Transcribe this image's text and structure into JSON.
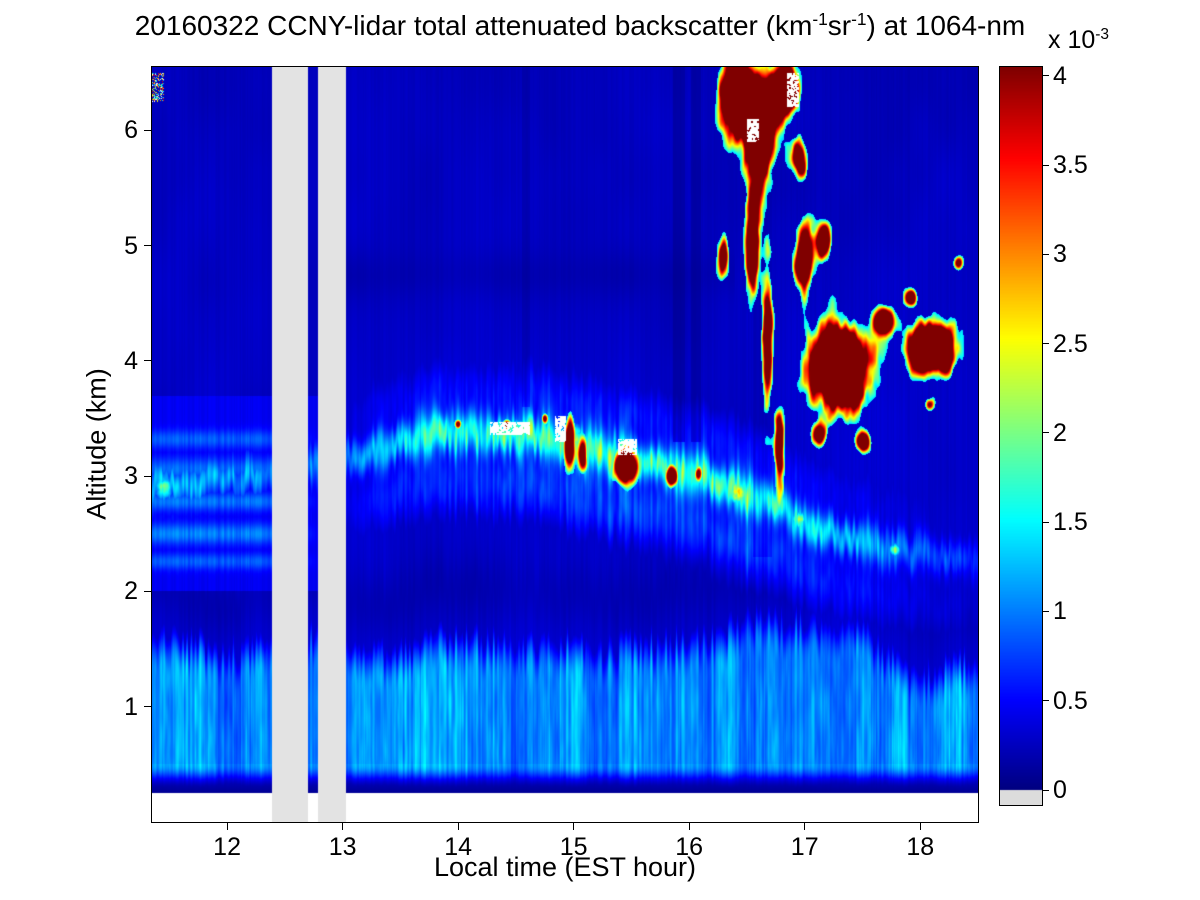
{
  "figure": {
    "background": "#ffffff"
  },
  "chart_data": {
    "type": "heatmap",
    "title_parts": [
      "20160322 CCNY-lidar total attenuated backscatter (km",
      "-1",
      "sr",
      "-1",
      ") at 1064-nm"
    ],
    "xlabel": "Local time (EST hour)",
    "ylabel": "Altitude (km)",
    "x_range": [
      11.35,
      18.5
    ],
    "y_range": [
      0,
      6.55
    ],
    "data_y_min": 0.25,
    "x_ticks": [
      {
        "v": 12,
        "label": "12"
      },
      {
        "v": 13,
        "label": "13"
      },
      {
        "v": 14,
        "label": "14"
      },
      {
        "v": 15,
        "label": "15"
      },
      {
        "v": 16,
        "label": "16"
      },
      {
        "v": 17,
        "label": "17"
      },
      {
        "v": 18,
        "label": "18"
      }
    ],
    "y_ticks": [
      {
        "v": 1,
        "label": "1"
      },
      {
        "v": 2,
        "label": "2"
      },
      {
        "v": 3,
        "label": "3"
      },
      {
        "v": 4,
        "label": "4"
      },
      {
        "v": 5,
        "label": "5"
      },
      {
        "v": 6,
        "label": "6"
      }
    ],
    "colorbar": {
      "scale_parts": [
        "x 10",
        "-3"
      ],
      "range": [
        0,
        4
      ],
      "colormap": "jet",
      "ticks": [
        {
          "v": 4,
          "label": "4"
        },
        {
          "v": 3.5,
          "label": "3.5"
        },
        {
          "v": 3,
          "label": "3"
        },
        {
          "v": 2.5,
          "label": "2.5"
        },
        {
          "v": 2,
          "label": "2"
        },
        {
          "v": 1.5,
          "label": "1.5"
        },
        {
          "v": 1,
          "label": "1"
        },
        {
          "v": 0.5,
          "label": "0.5"
        },
        {
          "v": 0,
          "label": "0"
        }
      ],
      "below_min_color": "#dcdcdc"
    },
    "data_gaps": [
      [
        12.39,
        12.7
      ],
      [
        12.79,
        13.03
      ]
    ],
    "gap_color": "#e3e3e3",
    "features": {
      "background": {
        "base": 0.34,
        "z_slope": -0.016,
        "noise_amp": 0.12
      },
      "boundary_layer": {
        "top_base": 1.62,
        "top_wave": 0.55,
        "top_jitter": 0.22,
        "val_base": 0.62,
        "val_amp": 0.75,
        "max_val": 1.48
      },
      "dip": {
        "depth": 0.1,
        "offset": 0.32,
        "width": 0.3
      },
      "layer": {
        "center_points": [
          [
            11.35,
            2.92
          ],
          [
            12.3,
            3.0
          ],
          [
            13.2,
            3.2
          ],
          [
            13.8,
            3.38
          ],
          [
            14.6,
            3.36
          ],
          [
            15.3,
            3.2
          ],
          [
            16.0,
            3.02
          ],
          [
            16.6,
            2.8
          ],
          [
            17.1,
            2.55
          ],
          [
            17.7,
            2.38
          ],
          [
            18.5,
            2.25
          ]
        ],
        "amp_points": [
          [
            11.35,
            1.15
          ],
          [
            12.2,
            0.95
          ],
          [
            13.0,
            0.9
          ],
          [
            13.6,
            1.45
          ],
          [
            14.3,
            1.65
          ],
          [
            15.0,
            1.8
          ],
          [
            15.8,
            1.75
          ],
          [
            16.5,
            1.7
          ],
          [
            17.0,
            1.55
          ],
          [
            17.6,
            1.0
          ],
          [
            18.1,
            0.7
          ],
          [
            18.5,
            0.55
          ]
        ],
        "width": 0.13,
        "width_noise": 0.06,
        "max_val": 2.5
      },
      "left_sublayers": {
        "fade_from": 12.3,
        "fade_to": 12.9,
        "layers": [
          [
            2.5,
            0.09,
            0.55
          ],
          [
            2.78,
            0.08,
            0.5
          ],
          [
            3.06,
            0.1,
            0.45
          ],
          [
            3.32,
            0.08,
            0.4
          ],
          [
            2.26,
            0.07,
            0.4
          ]
        ]
      },
      "hotspots": [
        {
          "t": 16.42,
          "z": 2.86,
          "rt": 0.1,
          "rz": 0.1,
          "amp": 2.6
        },
        {
          "t": 16.95,
          "z": 2.62,
          "rt": 0.07,
          "rz": 0.08,
          "amp": 2.2
        },
        {
          "t": 17.78,
          "z": 2.36,
          "rt": 0.05,
          "rz": 0.06,
          "amp": 2.3
        },
        {
          "t": 15.0,
          "z": 3.3,
          "rt": 0.1,
          "rz": 0.15,
          "amp": 2.2
        },
        {
          "t": 14.5,
          "z": 3.4,
          "rt": 0.12,
          "rz": 0.1,
          "amp": 2.0
        },
        {
          "t": 11.45,
          "z": 2.9,
          "rt": 0.08,
          "rz": 0.12,
          "amp": 1.9
        }
      ],
      "clouds": [
        {
          "t": 16.42,
          "z": 6.3,
          "rt": 0.17,
          "rz": 0.4,
          "d": 1.2
        },
        {
          "t": 16.62,
          "z": 5.95,
          "rt": 0.13,
          "rz": 0.5,
          "d": 1.1
        },
        {
          "t": 16.82,
          "z": 6.35,
          "rt": 0.13,
          "rz": 0.28,
          "d": 1.1
        },
        {
          "t": 16.55,
          "z": 5.0,
          "rt": 0.07,
          "rz": 0.5,
          "d": 0.9
        },
        {
          "t": 16.3,
          "z": 4.9,
          "rt": 0.05,
          "rz": 0.22,
          "d": 0.85
        },
        {
          "t": 16.68,
          "z": 4.2,
          "rt": 0.05,
          "rz": 0.7,
          "d": 0.85
        },
        {
          "t": 16.78,
          "z": 3.2,
          "rt": 0.045,
          "rz": 0.45,
          "d": 0.8
        },
        {
          "t": 17.0,
          "z": 4.9,
          "rt": 0.1,
          "rz": 0.3,
          "d": 1.0
        },
        {
          "t": 17.17,
          "z": 5.05,
          "rt": 0.07,
          "rz": 0.18,
          "d": 0.9
        },
        {
          "t": 16.95,
          "z": 5.75,
          "rt": 0.07,
          "rz": 0.2,
          "d": 0.85
        },
        {
          "t": 17.3,
          "z": 3.95,
          "rt": 0.28,
          "rz": 0.4,
          "d": 1.35
        },
        {
          "t": 17.12,
          "z": 3.35,
          "rt": 0.07,
          "rz": 0.12,
          "d": 0.8
        },
        {
          "t": 17.5,
          "z": 3.3,
          "rt": 0.07,
          "rz": 0.1,
          "d": 0.75
        },
        {
          "t": 17.68,
          "z": 4.35,
          "rt": 0.09,
          "rz": 0.13,
          "d": 0.8
        },
        {
          "t": 18.1,
          "z": 4.1,
          "rt": 0.23,
          "rz": 0.24,
          "d": 1.25
        },
        {
          "t": 18.08,
          "z": 3.62,
          "rt": 0.05,
          "rz": 0.07,
          "d": 0.7
        },
        {
          "t": 17.92,
          "z": 4.55,
          "rt": 0.06,
          "rz": 0.08,
          "d": 0.7
        },
        {
          "t": 18.33,
          "z": 4.85,
          "rt": 0.05,
          "rz": 0.07,
          "d": 0.65
        },
        {
          "t": 14.97,
          "z": 3.3,
          "rt": 0.055,
          "rz": 0.26,
          "d": 0.95
        },
        {
          "t": 15.08,
          "z": 3.2,
          "rt": 0.045,
          "rz": 0.2,
          "d": 0.85
        },
        {
          "t": 15.45,
          "z": 3.08,
          "rt": 0.12,
          "rz": 0.17,
          "d": 1.0
        },
        {
          "t": 15.85,
          "z": 3.0,
          "rt": 0.07,
          "rz": 0.1,
          "d": 0.85
        },
        {
          "t": 16.08,
          "z": 3.02,
          "rt": 0.04,
          "rz": 0.08,
          "d": 0.7
        },
        {
          "t": 14.42,
          "z": 3.45,
          "rt": 0.05,
          "rz": 0.06,
          "d": 0.7
        },
        {
          "t": 14.75,
          "z": 3.5,
          "rt": 0.03,
          "rz": 0.05,
          "d": 0.6
        },
        {
          "t": 14.0,
          "z": 3.45,
          "rt": 0.035,
          "rz": 0.05,
          "d": 0.65
        }
      ],
      "shadows": [
        {
          "t0": 15.86,
          "t1": 15.96,
          "z0": 3.3,
          "f": 0.55
        },
        {
          "t0": 16.02,
          "t1": 16.1,
          "z0": 3.3,
          "f": 0.6
        },
        {
          "t0": 16.55,
          "t1": 16.72,
          "z0": 2.3,
          "f": 0.8
        },
        {
          "t0": 14.55,
          "t1": 14.62,
          "z0": 3.6,
          "f": 0.75
        }
      ],
      "dark_bands": [
        {
          "z": 4.75,
          "w": 0.2,
          "t0": 13.0,
          "t1": 16.4,
          "depth": 0.06
        }
      ],
      "white_patches": [
        {
          "t0": 14.84,
          "t1": 14.93,
          "z0": 3.3,
          "z1": 3.52
        },
        {
          "t0": 15.38,
          "t1": 15.55,
          "z0": 3.18,
          "z1": 3.32
        },
        {
          "t0": 14.28,
          "t1": 14.62,
          "z0": 3.36,
          "z1": 3.47
        },
        {
          "t0": 16.5,
          "t1": 16.6,
          "z0": 5.9,
          "z1": 6.1
        },
        {
          "t0": 16.85,
          "t1": 16.95,
          "z0": 6.2,
          "z1": 6.5
        }
      ],
      "specks": {
        "t0": 11.35,
        "t1": 11.45,
        "z0": 6.25,
        "z1": 6.5
      }
    }
  }
}
